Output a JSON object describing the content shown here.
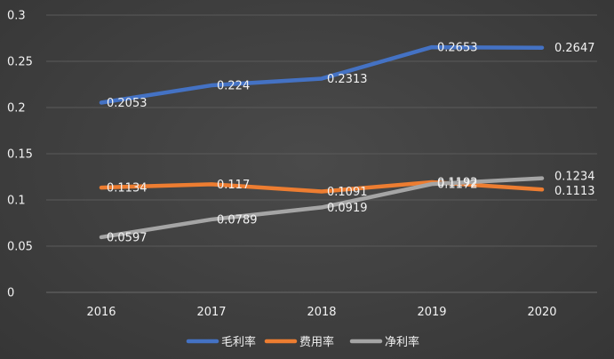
{
  "chart_data": {
    "type": "line",
    "title": "",
    "xlabel": "",
    "ylabel": "",
    "categories": [
      "2016",
      "2017",
      "2018",
      "2019",
      "2020"
    ],
    "ylim": [
      0,
      0.3
    ],
    "yticks": [
      0,
      0.05,
      0.1,
      0.15,
      0.2,
      0.25,
      0.3
    ],
    "ytick_labels": [
      "0",
      "0.05",
      "0.1",
      "0.15",
      "0.2",
      "0.25",
      "0.3"
    ],
    "grid": true,
    "legend_position": "bottom",
    "series": [
      {
        "name": "毛利率",
        "color": "#4472c4",
        "values": [
          0.2053,
          0.224,
          0.2313,
          0.2653,
          0.2647
        ],
        "labels": [
          "0.2053",
          "0.224",
          "0.2313",
          "0.2653",
          "0.2647"
        ]
      },
      {
        "name": "费用率",
        "color": "#ed7d31",
        "values": [
          0.1134,
          0.117,
          0.1091,
          0.1192,
          0.1113
        ],
        "labels": [
          "0.1134",
          "0.117",
          "0.1091",
          "0.1192",
          "0.1113"
        ]
      },
      {
        "name": "净利率",
        "color": "#a5a5a5",
        "values": [
          0.0597,
          0.0789,
          0.0919,
          0.1172,
          0.1234
        ],
        "labels": [
          "0.0597",
          "0.0789",
          "0.0919",
          "0.1172",
          "0.1234"
        ]
      }
    ]
  }
}
